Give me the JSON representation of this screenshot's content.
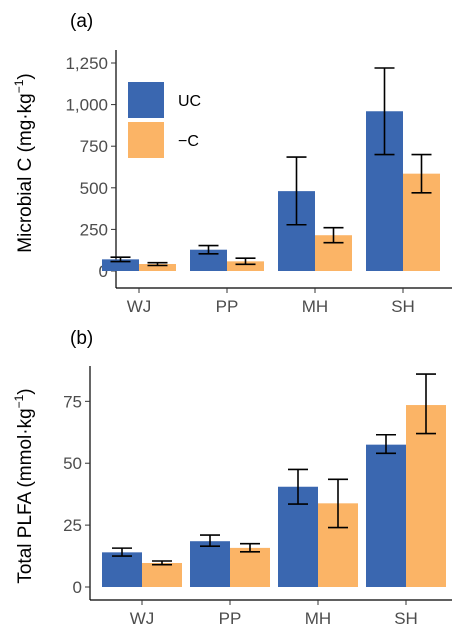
{
  "chart_data": [
    {
      "type": "bar",
      "panel_label": "(a)",
      "ylabel": "Microbial C (mg·kg",
      "ylabel_sup": "−1",
      "ylabel_end": ")",
      "categories": [
        "WJ",
        "PP",
        "MH",
        "SH"
      ],
      "ylim": [
        0,
        1250
      ],
      "yticks": [
        0,
        250,
        500,
        750,
        1000,
        1250
      ],
      "ytick_labels": [
        "0",
        "250",
        "500",
        "750",
        "1,000",
        "1,250"
      ],
      "series": [
        {
          "name": "UC",
          "color": "#3a67b0",
          "values": [
            70,
            128,
            480,
            960
          ],
          "err_low": [
            57,
            103,
            278,
            700
          ],
          "err_high": [
            83,
            153,
            685,
            1220
          ]
        },
        {
          "name": "−C",
          "color": "#fbb466",
          "values": [
            42,
            58,
            215,
            585
          ],
          "err_low": [
            33,
            40,
            170,
            470
          ],
          "err_high": [
            50,
            77,
            260,
            700
          ]
        }
      ],
      "legend": "top-left",
      "grid": false
    },
    {
      "type": "bar",
      "panel_label": "(b)",
      "ylabel": "Total PLFA (mmol·kg",
      "ylabel_sup": "−1",
      "ylabel_end": ")",
      "categories": [
        "WJ",
        "PP",
        "MH",
        "SH"
      ],
      "ylim": [
        0,
        90
      ],
      "yticks": [
        0,
        25,
        50,
        75
      ],
      "ytick_labels": [
        "0",
        "25",
        "50",
        "75"
      ],
      "series": [
        {
          "name": "UC",
          "color": "#3a67b0",
          "values": [
            14,
            18.5,
            40.5,
            57.5
          ],
          "err_low": [
            12.5,
            16.5,
            33.5,
            54
          ],
          "err_high": [
            15.7,
            21,
            47.5,
            61.5
          ]
        },
        {
          "name": "−C",
          "color": "#fbb466",
          "values": [
            9.7,
            15.8,
            33.8,
            73.5
          ],
          "err_low": [
            9,
            14.2,
            24,
            62
          ],
          "err_high": [
            10.5,
            17.5,
            43.5,
            86
          ]
        }
      ],
      "legend": "none",
      "grid": false
    }
  ]
}
